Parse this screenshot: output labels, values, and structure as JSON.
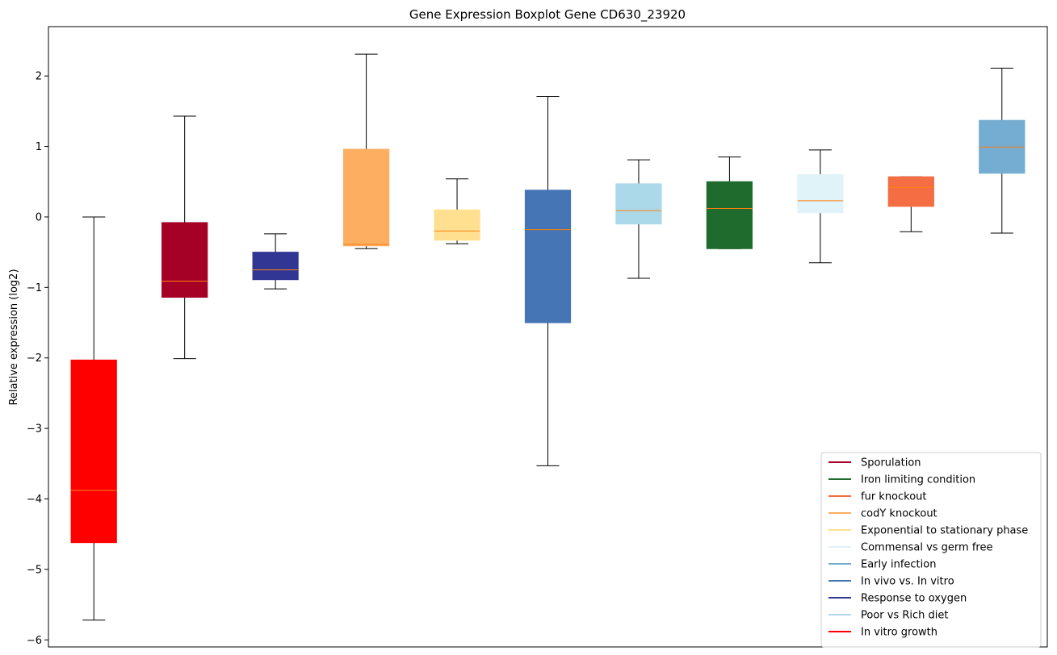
{
  "chart_data": {
    "type": "boxplot",
    "title": "Gene Expression Boxplot Gene CD630_23920",
    "xlabel": "",
    "ylabel": "Relative expression (log2)",
    "ylim": [
      -6.1,
      2.7
    ],
    "yticks": [
      2,
      1,
      0,
      -1,
      -2,
      -3,
      -4,
      -5,
      -6
    ],
    "ytick_labels": [
      "2",
      "1",
      "0",
      "−1",
      "−2",
      "−3",
      "−4",
      "−5",
      "−6"
    ],
    "grid": false,
    "legend_position": "lower-right",
    "median_color": "#ff7f0e",
    "whisker_color": "#000000",
    "boxes": [
      {
        "name": "In vitro growth",
        "color": "#ff0000",
        "whisker_low": -5.72,
        "q1": -4.62,
        "median": -3.88,
        "q3": -2.03,
        "whisker_high": 0.0
      },
      {
        "name": "Sporulation",
        "color": "#a50026",
        "whisker_low": -2.01,
        "q1": -1.14,
        "median": -0.91,
        "q3": -0.08,
        "whisker_high": 1.43
      },
      {
        "name": "Response to oxygen",
        "color": "#313695",
        "whisker_low": -1.02,
        "q1": -0.89,
        "median": -0.75,
        "q3": -0.5,
        "whisker_high": -0.24
      },
      {
        "name": "codY knockout",
        "color": "#fdae61",
        "whisker_low": -0.45,
        "q1": -0.41,
        "median": -0.39,
        "q3": 0.96,
        "whisker_high": 2.31
      },
      {
        "name": "Exponential to stationary phase",
        "color": "#fee090",
        "whisker_low": -0.38,
        "q1": -0.33,
        "median": -0.2,
        "q3": 0.1,
        "whisker_high": 0.54
      },
      {
        "name": "In vivo vs. In vitro",
        "color": "#4575b4",
        "whisker_low": -3.53,
        "q1": -1.5,
        "median": -0.18,
        "q3": 0.38,
        "whisker_high": 1.71
      },
      {
        "name": "Poor vs Rich diet",
        "color": "#abd9e9",
        "whisker_low": -0.87,
        "q1": -0.1,
        "median": 0.09,
        "q3": 0.47,
        "whisker_high": 0.81
      },
      {
        "name": "Iron limiting condition",
        "color": "#1f6b2e",
        "whisker_low": -0.45,
        "q1": -0.45,
        "median": 0.12,
        "q3": 0.5,
        "whisker_high": 0.85
      },
      {
        "name": "Commensal vs germ free",
        "color": "#e0f3f8",
        "whisker_low": -0.65,
        "q1": 0.06,
        "median": 0.23,
        "q3": 0.6,
        "whisker_high": 0.95
      },
      {
        "name": "fur knockout",
        "color": "#f46d43",
        "whisker_low": -0.21,
        "q1": 0.15,
        "median": 0.42,
        "q3": 0.57,
        "whisker_high": 0.57
      },
      {
        "name": "Early infection",
        "color": "#74add1",
        "whisker_low": -0.23,
        "q1": 0.62,
        "median": 0.99,
        "q3": 1.37,
        "whisker_high": 2.11
      }
    ],
    "legend": [
      {
        "label": "Sporulation",
        "color": "#a50026"
      },
      {
        "label": "Iron limiting condition",
        "color": "#1f6b2e"
      },
      {
        "label": "fur knockout",
        "color": "#f46d43"
      },
      {
        "label": "codY knockout",
        "color": "#fdae61"
      },
      {
        "label": "Exponential to stationary phase",
        "color": "#fee090"
      },
      {
        "label": "Commensal vs germ free",
        "color": "#e0f3f8"
      },
      {
        "label": "Early infection",
        "color": "#74add1"
      },
      {
        "label": "In vivo vs. In vitro",
        "color": "#4575b4"
      },
      {
        "label": "Response to oxygen",
        "color": "#313695"
      },
      {
        "label": "Poor vs Rich diet",
        "color": "#abd9e9"
      },
      {
        "label": "In vitro growth",
        "color": "#ff0000"
      }
    ]
  }
}
